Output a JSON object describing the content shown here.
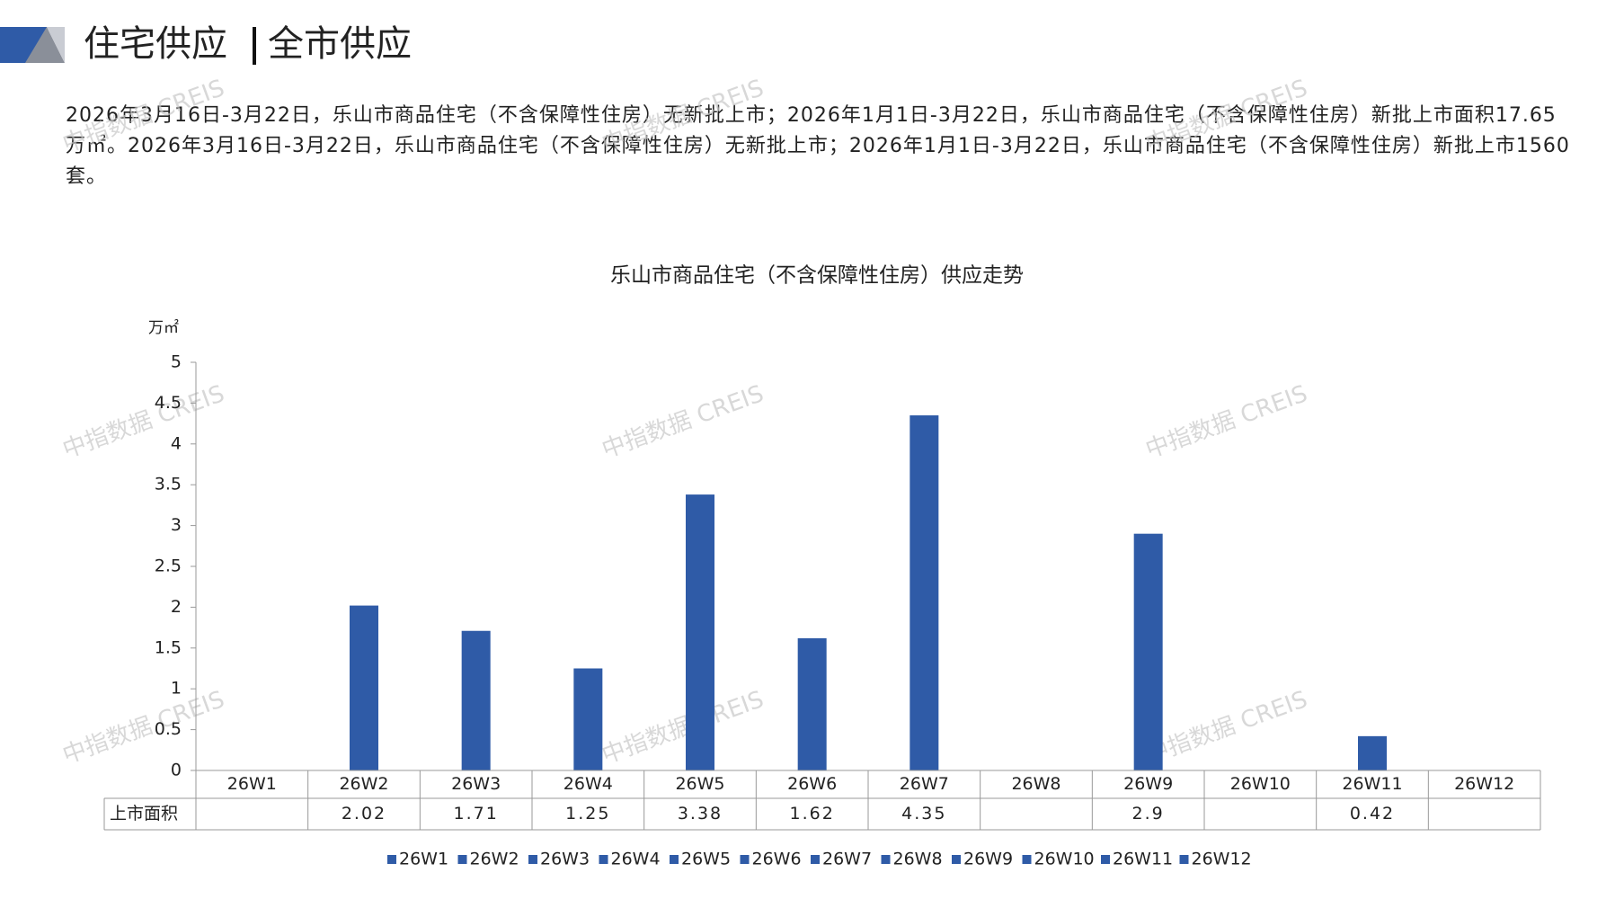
{
  "header": {
    "title": "住宅供应",
    "subtitle": "全市供应"
  },
  "paragraph": "2026年3月16日-3月22日，乐山市商品住宅（不含保障性住房）无新批上市；2026年1月1日-3月22日，乐山市商品住宅（不含保障性住房）新批上市面积17.65万㎡。2026年3月16日-3月22日，乐山市商品住宅（不含保障性住房）无新批上市；2026年1月1日-3月22日，乐山市商品住宅（不含保障性住房）新批上市1560套。",
  "watermark": "中指数据 CREIS",
  "chart_data": {
    "type": "bar",
    "title": "乐山市商品住宅（不含保障性住房）供应走势",
    "y_label": "万㎡",
    "categories": [
      "26W1",
      "26W2",
      "26W3",
      "26W4",
      "26W5",
      "26W6",
      "26W7",
      "26W8",
      "26W9",
      "26W10",
      "26W11",
      "26W12"
    ],
    "series": [
      {
        "name": "上市面积",
        "color": "#2f5ba7",
        "values": [
          null,
          2.02,
          1.71,
          1.25,
          3.38,
          1.62,
          4.35,
          null,
          2.9,
          null,
          0.42,
          null
        ]
      }
    ],
    "ylim": [
      0,
      5
    ],
    "yticks": [
      0,
      0.5,
      1,
      1.5,
      2,
      2.5,
      3,
      3.5,
      4,
      4.5,
      5
    ],
    "grid": false,
    "data_table": true
  }
}
